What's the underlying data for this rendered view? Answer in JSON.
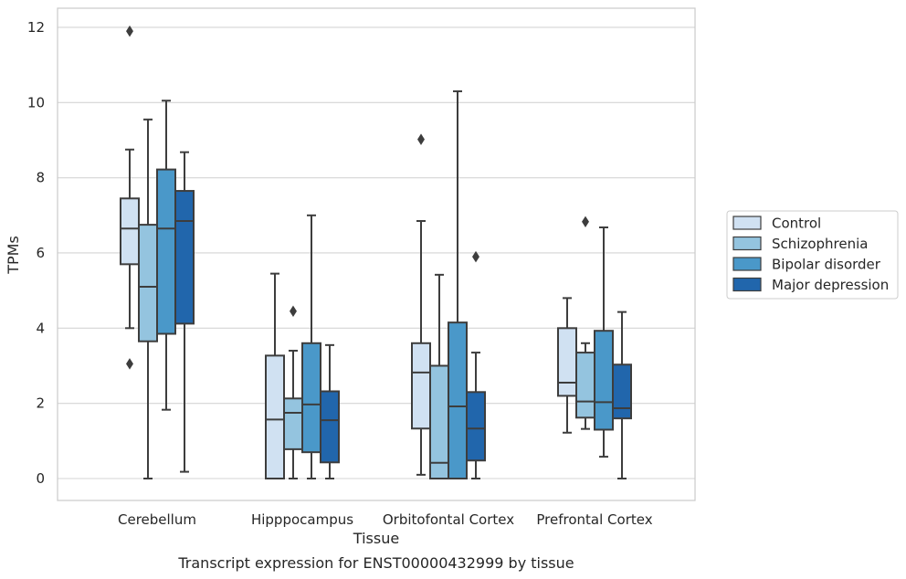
{
  "chart_data": {
    "type": "box",
    "caption": "Transcript expression for ENST00000432999 by tissue",
    "xlabel": "Tissue",
    "ylabel": "TPMs",
    "ylim": [
      -0.55,
      12.5
    ],
    "yticks": [
      0,
      2,
      4,
      6,
      8,
      10,
      12
    ],
    "grid": true,
    "legend_position": "right",
    "categories": [
      "Cerebellum",
      "Hipppocampus",
      "Orbitofontal Cortex",
      "Prefrontal Cortex"
    ],
    "series": [
      {
        "name": "Control",
        "color": "#d0e1f2",
        "boxes": [
          {
            "whisker_low": 4.0,
            "q1": 5.7,
            "median": 6.65,
            "q3": 7.45,
            "whisker_high": 8.75,
            "outliers": [
              11.9,
              3.05
            ]
          },
          {
            "whisker_low": 0.0,
            "q1": 0.0,
            "median": 1.57,
            "q3": 3.27,
            "whisker_high": 5.45,
            "outliers": []
          },
          {
            "whisker_low": 0.1,
            "q1": 1.33,
            "median": 2.82,
            "q3": 3.6,
            "whisker_high": 6.85,
            "outliers": [
              9.02
            ]
          },
          {
            "whisker_low": 1.22,
            "q1": 2.2,
            "median": 2.55,
            "q3": 4.0,
            "whisker_high": 4.8,
            "outliers": []
          }
        ]
      },
      {
        "name": "Schizophrenia",
        "color": "#94c4df",
        "boxes": [
          {
            "whisker_low": 0.0,
            "q1": 3.65,
            "median": 5.1,
            "q3": 6.75,
            "whisker_high": 9.55,
            "outliers": []
          },
          {
            "whisker_low": 0.0,
            "q1": 0.78,
            "median": 1.75,
            "q3": 2.13,
            "whisker_high": 3.4,
            "outliers": [
              4.45
            ]
          },
          {
            "whisker_low": 0.0,
            "q1": 0.0,
            "median": 0.42,
            "q3": 3.0,
            "whisker_high": 5.42,
            "outliers": []
          },
          {
            "whisker_low": 1.32,
            "q1": 1.62,
            "median": 2.05,
            "q3": 3.35,
            "whisker_high": 3.6,
            "outliers": [
              6.83
            ]
          }
        ]
      },
      {
        "name": "Bipolar disorder",
        "color": "#4a98c9",
        "boxes": [
          {
            "whisker_low": 1.83,
            "q1": 3.85,
            "median": 6.65,
            "q3": 8.22,
            "whisker_high": 10.05,
            "outliers": []
          },
          {
            "whisker_low": 0.0,
            "q1": 0.7,
            "median": 1.97,
            "q3": 3.6,
            "whisker_high": 7.0,
            "outliers": []
          },
          {
            "whisker_low": 0.0,
            "q1": 0.0,
            "median": 1.92,
            "q3": 4.15,
            "whisker_high": 10.3,
            "outliers": []
          },
          {
            "whisker_low": 0.58,
            "q1": 1.3,
            "median": 2.03,
            "q3": 3.93,
            "whisker_high": 6.68,
            "outliers": []
          }
        ]
      },
      {
        "name": "Major depression",
        "color": "#2166ac",
        "boxes": [
          {
            "whisker_low": 0.18,
            "q1": 4.12,
            "median": 6.85,
            "q3": 7.65,
            "whisker_high": 8.68,
            "outliers": []
          },
          {
            "whisker_low": 0.0,
            "q1": 0.43,
            "median": 1.55,
            "q3": 2.32,
            "whisker_high": 3.55,
            "outliers": []
          },
          {
            "whisker_low": 0.0,
            "q1": 0.48,
            "median": 1.33,
            "q3": 2.3,
            "whisker_high": 3.35,
            "outliers": [
              5.9
            ]
          },
          {
            "whisker_low": 0.0,
            "q1": 1.6,
            "median": 1.87,
            "q3": 3.03,
            "whisker_high": 4.43,
            "outliers": []
          }
        ]
      }
    ]
  }
}
